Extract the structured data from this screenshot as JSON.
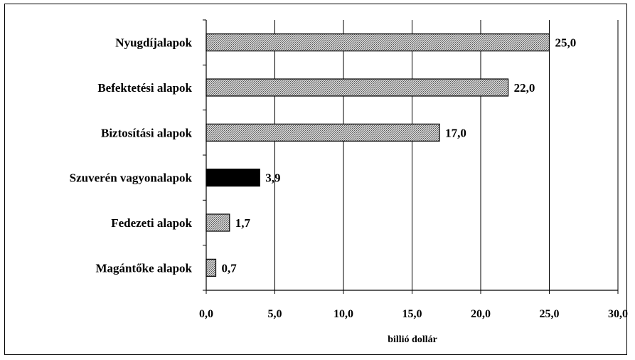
{
  "chart_data": {
    "type": "bar",
    "orientation": "horizontal",
    "categories": [
      "Nyugdíjalapok",
      "Befektetési alapok",
      "Biztosítási alapok",
      "Szuverén vagyonalapok",
      "Fedezeti alapok",
      "Magántőke alapok"
    ],
    "values": [
      25.0,
      22.0,
      17.0,
      3.9,
      1.7,
      0.7
    ],
    "value_labels": [
      "25,0",
      "22,0",
      "17,0",
      "3,9",
      "1,7",
      "0,7"
    ],
    "highlight_index": 3,
    "xlabel": "billió dollár",
    "xlim": [
      0,
      30
    ],
    "xticks": [
      0,
      5,
      10,
      15,
      20,
      25,
      30
    ],
    "xtick_labels": [
      "0,0",
      "5,0",
      "10,0",
      "15,0",
      "20,0",
      "25,0",
      "30,0"
    ],
    "grid": "vertical",
    "colors": {
      "default": "hatched-gray",
      "highlight": "#000000",
      "grid": "#000000"
    }
  }
}
